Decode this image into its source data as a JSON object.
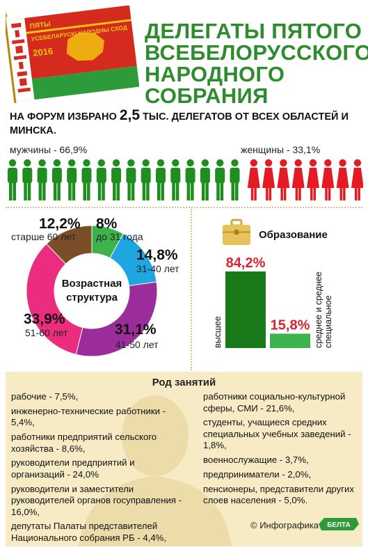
{
  "flag": {
    "top_label": "ПЯТЫ",
    "assembly_label": "УСЕБЕЛАРУСКІ НАРОДНЫ СХОД",
    "year": "2016"
  },
  "title": {
    "lines": [
      "ДЕЛЕГАТЫ ПЯТОГО",
      "ВСЕБЕЛОРУССКОГО",
      "НАРОДНОГО",
      "СОБРАНИЯ"
    ]
  },
  "forum": {
    "text_before": "На форум избрано ",
    "number": "2,5",
    "text_after": " тыс. делегатов от всех областей и Минска."
  },
  "gender": {
    "men_label": "мужчины - 66,9%",
    "women_label": "женщины - 33,1%",
    "men_share": 66.9,
    "women_share": 33.1,
    "icons_total": 24,
    "colors": {
      "men": "#1e8f1e",
      "women": "#e41b23"
    }
  },
  "age": {
    "center_title": "Возрастная структура",
    "segments": [
      {
        "label": "до 31 года",
        "pct_text": "8%",
        "value": 8.0,
        "color": "#3cb44b"
      },
      {
        "label": "31-40 лет",
        "pct_text": "14,8%",
        "value": 14.8,
        "color": "#1ea6e3"
      },
      {
        "label": "41-50 лет",
        "pct_text": "31,1%",
        "value": 31.1,
        "color": "#9b2d9b"
      },
      {
        "label": "51-60 лет",
        "pct_text": "33,9%",
        "value": 33.9,
        "color": "#ec2c7e"
      },
      {
        "label": "старше 60 лет",
        "pct_text": "12,2%",
        "value": 12.2,
        "color": "#7a4e26"
      }
    ]
  },
  "education": {
    "title": "Образование",
    "bars": [
      {
        "label": "высшее",
        "pct_text": "84,2%",
        "value": 84.2,
        "color": "#1a7a1a"
      },
      {
        "label": "среднее и среднее специальное",
        "pct_text": "15,8%",
        "value": 15.8,
        "color": "#3cb44b"
      }
    ],
    "pct_color": "#d6242f"
  },
  "occupation": {
    "title": "Род занятий",
    "left_items": [
      "рабочие - 7,5%,",
      "инженерно-технические работники - 5,4%,",
      "работники предприятий сельского хозяйства - 8,6%,",
      "руководители предприятий и организаций - 24,0%",
      "руководители и заместители руководителей органов госуправления - 16,0%,",
      "депутаты Палаты представителей Национального собрания РБ - 4,4%,"
    ],
    "right_items": [
      "работники социально-культурной сферы, СМИ - 21,6%,",
      "студенты, учащиеся средних специальных учебных заведений - 1,8%,",
      "военнослужащие - 3,7%,",
      "предприниматели - 2,0%,",
      "пенсионеры, представители других слоев населения - 5,0%."
    ]
  },
  "credit": {
    "text": "© Инфографика",
    "logo": "БЕЛТА"
  },
  "chart_data": [
    {
      "type": "pie",
      "title": "Возрастная структура",
      "categories": [
        "до 31 года",
        "31-40 лет",
        "41-50 лет",
        "51-60 лет",
        "старше 60 лет"
      ],
      "values": [
        8.0,
        14.8,
        31.1,
        33.9,
        12.2
      ]
    },
    {
      "type": "bar",
      "title": "Образование",
      "categories": [
        "высшее",
        "среднее и среднее специальное"
      ],
      "values": [
        84.2,
        15.8
      ]
    },
    {
      "type": "bar",
      "categories": [
        "мужчины",
        "женщины"
      ],
      "values": [
        66.9,
        33.1
      ]
    }
  ]
}
